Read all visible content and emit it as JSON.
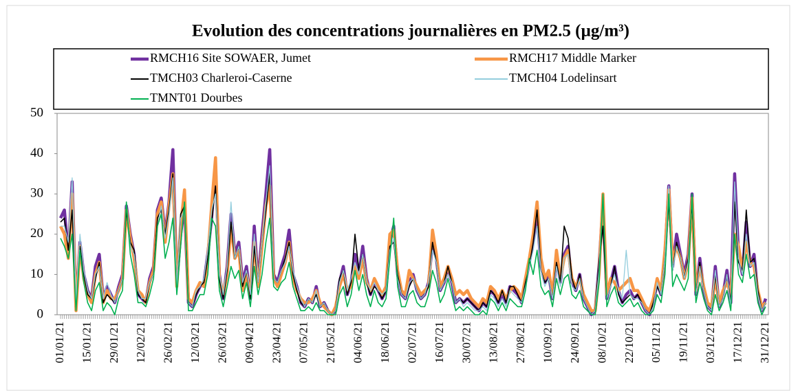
{
  "chart_data": {
    "type": "line",
    "title": "Evolution des concentrations journalières en PM2.5 (µg/m³)",
    "categories": [
      "01/01/21",
      null,
      null,
      null,
      null,
      null,
      null,
      "15/01/21",
      null,
      null,
      null,
      null,
      null,
      null,
      "29/01/21",
      null,
      null,
      null,
      null,
      null,
      null,
      "12/02/21",
      null,
      null,
      null,
      null,
      null,
      null,
      "26/02/21",
      null,
      null,
      null,
      null,
      null,
      null,
      "12/03/21",
      null,
      null,
      null,
      null,
      null,
      null,
      "26/03/21",
      null,
      null,
      null,
      null,
      null,
      null,
      "09/04/21",
      null,
      null,
      null,
      null,
      null,
      null,
      "23/04/21",
      null,
      null,
      null,
      null,
      null,
      null,
      "07/05/21",
      null,
      null,
      null,
      null,
      null,
      null,
      "21/05/21",
      null,
      null,
      null,
      null,
      null,
      null,
      "04/06/21",
      null,
      null,
      null,
      null,
      null,
      null,
      "18/06/21",
      null,
      null,
      null,
      null,
      null,
      null,
      "02/07/21",
      null,
      null,
      null,
      null,
      null,
      null,
      "16/07/21",
      null,
      null,
      null,
      null,
      null,
      null,
      "30/07/21",
      null,
      null,
      null,
      null,
      null,
      null,
      "13/08/21",
      null,
      null,
      null,
      null,
      null,
      null,
      "27/08/21",
      null,
      null,
      null,
      null,
      null,
      null,
      "10/09/21",
      null,
      null,
      null,
      null,
      null,
      null,
      "24/09/21",
      null,
      null,
      null,
      null,
      null,
      null,
      "08/10/21",
      null,
      null,
      null,
      null,
      null,
      null,
      "22/10/21",
      null,
      null,
      null,
      null,
      null,
      null,
      "05/11/21",
      null,
      null,
      null,
      null,
      null,
      null,
      "19/11/21",
      null,
      null,
      null,
      null,
      null,
      null,
      "03/12/21",
      null,
      null,
      null,
      null,
      null,
      null,
      "17/12/21",
      null,
      null,
      null,
      null,
      null,
      null,
      "31/12/21"
    ],
    "series": [
      {
        "name": "RMCH16 Site SOWAER, Jumet",
        "color": "#7030a0",
        "values": [
          24,
          26,
          15,
          33,
          2,
          18,
          10,
          6,
          4,
          12,
          15,
          4,
          7,
          5,
          3,
          7,
          10,
          27,
          20,
          15,
          5,
          4,
          3,
          9,
          12,
          26,
          29,
          20,
          28,
          41,
          8,
          20,
          27,
          3,
          2,
          5,
          7,
          8,
          15,
          24,
          37,
          10,
          4,
          12,
          25,
          15,
          18,
          8,
          12,
          4,
          22,
          8,
          20,
          30,
          41,
          10,
          8,
          12,
          15,
          21,
          10,
          7,
          3,
          2,
          4,
          3,
          7,
          2,
          3,
          1,
          0,
          1,
          8,
          12,
          5,
          8,
          15,
          10,
          17,
          9,
          5,
          8,
          6,
          4,
          6,
          18,
          22,
          10,
          5,
          4,
          8,
          10,
          6,
          4,
          5,
          8,
          18,
          14,
          6,
          8,
          11,
          8,
          3,
          4,
          3,
          4,
          3,
          2,
          1,
          3,
          2,
          6,
          5,
          3,
          5,
          3,
          7,
          6,
          5,
          3,
          8,
          13,
          18,
          25,
          12,
          8,
          10,
          4,
          14,
          8,
          15,
          17,
          8,
          6,
          10,
          4,
          2,
          0,
          1,
          12,
          28,
          4,
          8,
          12,
          6,
          3,
          5,
          6,
          4,
          5,
          3,
          1,
          0,
          3,
          8,
          5,
          15,
          32,
          12,
          20,
          15,
          10,
          15,
          30,
          5,
          14,
          6,
          2,
          1,
          12,
          2,
          5,
          11,
          3,
          35,
          15,
          10,
          23,
          12,
          15,
          5,
          1,
          4
        ]
      },
      {
        "name": "RMCH17 Middle Marker",
        "color": "#f79646",
        "values": [
          22,
          20,
          14,
          30,
          1,
          17,
          9,
          5,
          3,
          10,
          13,
          3,
          6,
          4,
          4,
          6,
          9,
          26,
          19,
          14,
          6,
          5,
          3,
          8,
          11,
          25,
          28,
          18,
          27,
          35,
          7,
          22,
          31,
          4,
          3,
          6,
          8,
          7,
          14,
          27,
          39,
          9,
          5,
          10,
          22,
          14,
          16,
          6,
          10,
          5,
          18,
          7,
          17,
          27,
          32,
          9,
          7,
          10,
          13,
          18,
          9,
          6,
          4,
          3,
          3,
          4,
          6,
          3,
          2,
          1,
          0,
          2,
          7,
          10,
          6,
          7,
          12,
          9,
          14,
          8,
          6,
          9,
          7,
          5,
          7,
          20,
          21,
          11,
          6,
          5,
          11,
          9,
          7,
          5,
          6,
          7,
          21,
          15,
          7,
          9,
          12,
          9,
          5,
          6,
          5,
          6,
          4,
          3,
          2,
          4,
          3,
          7,
          6,
          4,
          6,
          4,
          6,
          7,
          6,
          4,
          9,
          14,
          20,
          28,
          14,
          9,
          11,
          5,
          16,
          9,
          14,
          16,
          9,
          7,
          9,
          5,
          3,
          1,
          1,
          10,
          30,
          5,
          9,
          8,
          6,
          7,
          8,
          9,
          6,
          6,
          4,
          2,
          1,
          4,
          9,
          6,
          16,
          31,
          13,
          17,
          14,
          9,
          13,
          29,
          6,
          12,
          7,
          3,
          2,
          9,
          3,
          6,
          8,
          5,
          20,
          17,
          11,
          18,
          13,
          12,
          6,
          2,
          3
        ]
      },
      {
        "name": "TMCH03 Charleroi-Caserne",
        "color": "#000000",
        "values": [
          23,
          24,
          16,
          26,
          2,
          17,
          10,
          5,
          4,
          9,
          13,
          3,
          5,
          4,
          3,
          6,
          9,
          26,
          18,
          16,
          5,
          4,
          3,
          8,
          10,
          24,
          26,
          20,
          26,
          35,
          6,
          25,
          27,
          3,
          2,
          5,
          7,
          8,
          14,
          23,
          32,
          9,
          4,
          11,
          23,
          14,
          17,
          7,
          11,
          4,
          17,
          8,
          18,
          26,
          35,
          9,
          8,
          11,
          14,
          18,
          10,
          6,
          3,
          2,
          4,
          3,
          5,
          2,
          3,
          1,
          0,
          1,
          9,
          11,
          5,
          8,
          20,
          11,
          15,
          8,
          5,
          7,
          6,
          4,
          6,
          17,
          18,
          10,
          5,
          4,
          7,
          9,
          6,
          4,
          5,
          7,
          18,
          13,
          6,
          8,
          12,
          8,
          3,
          4,
          3,
          4,
          3,
          2,
          1,
          3,
          2,
          6,
          5,
          3,
          6,
          3,
          7,
          7,
          5,
          3,
          8,
          12,
          18,
          26,
          11,
          8,
          9,
          4,
          13,
          8,
          22,
          19,
          9,
          6,
          10,
          4,
          2,
          0,
          1,
          13,
          22,
          4,
          7,
          12,
          5,
          3,
          4,
          5,
          4,
          5,
          3,
          1,
          0,
          3,
          7,
          5,
          14,
          28,
          11,
          18,
          14,
          9,
          14,
          28,
          5,
          13,
          6,
          2,
          1,
          10,
          2,
          4,
          10,
          3,
          28,
          13,
          11,
          26,
          13,
          14,
          6,
          1,
          3
        ]
      },
      {
        "name": "TMCH04 Lodelinsart",
        "color": "#93cddd",
        "values": [
          22,
          22,
          18,
          34,
          3,
          20,
          11,
          6,
          4,
          10,
          12,
          4,
          8,
          5,
          3,
          6,
          9,
          28,
          17,
          15,
          6,
          4,
          4,
          8,
          10,
          22,
          27,
          19,
          25,
          34,
          7,
          24,
          26,
          3,
          2,
          6,
          7,
          9,
          16,
          26,
          30,
          10,
          5,
          12,
          28,
          14,
          17,
          8,
          11,
          5,
          20,
          8,
          18,
          28,
          37,
          9,
          8,
          11,
          13,
          17,
          11,
          7,
          4,
          2,
          4,
          3,
          6,
          2,
          3,
          1,
          0,
          1,
          8,
          11,
          6,
          9,
          13,
          10,
          15,
          8,
          6,
          8,
          6,
          5,
          6,
          16,
          19,
          9,
          5,
          4,
          8,
          9,
          6,
          4,
          5,
          8,
          16,
          13,
          6,
          8,
          10,
          8,
          3,
          4,
          2,
          3,
          2,
          1,
          1,
          2,
          1,
          5,
          4,
          2,
          4,
          2,
          6,
          5,
          4,
          3,
          7,
          12,
          16,
          22,
          11,
          7,
          9,
          4,
          12,
          7,
          14,
          15,
          7,
          6,
          9,
          4,
          2,
          0,
          1,
          11,
          30,
          4,
          7,
          10,
          6,
          4,
          16,
          5,
          4,
          4,
          3,
          1,
          0,
          2,
          8,
          5,
          14,
          32,
          11,
          17,
          14,
          9,
          13,
          29,
          5,
          12,
          6,
          2,
          1,
          11,
          2,
          4,
          10,
          2,
          33,
          14,
          10,
          20,
          12,
          13,
          5,
          1,
          3
        ]
      },
      {
        "name": "TMNT01 Dourbes",
        "color": "#00b050",
        "values": [
          19,
          17,
          14,
          20,
          1,
          16,
          8,
          3,
          1,
          6,
          8,
          1,
          3,
          2,
          0,
          4,
          6,
          28,
          15,
          10,
          3,
          3,
          2,
          5,
          9,
          22,
          25,
          14,
          18,
          24,
          5,
          17,
          28,
          1,
          1,
          3,
          5,
          5,
          10,
          24,
          22,
          6,
          2,
          7,
          12,
          9,
          11,
          4,
          8,
          2,
          12,
          5,
          10,
          18,
          24,
          7,
          6,
          8,
          9,
          13,
          7,
          4,
          1,
          1,
          2,
          1,
          3,
          1,
          1,
          0,
          0,
          0,
          5,
          7,
          2,
          5,
          11,
          6,
          10,
          5,
          2,
          6,
          3,
          2,
          4,
          14,
          24,
          7,
          2,
          2,
          5,
          6,
          3,
          2,
          2,
          5,
          11,
          8,
          3,
          5,
          9,
          5,
          1,
          2,
          1,
          2,
          1,
          0,
          0,
          1,
          0,
          4,
          3,
          1,
          3,
          1,
          4,
          3,
          2,
          2,
          6,
          14,
          10,
          16,
          7,
          5,
          6,
          2,
          9,
          5,
          9,
          10,
          5,
          4,
          6,
          2,
          1,
          0,
          0,
          8,
          30,
          2,
          5,
          7,
          3,
          2,
          3,
          4,
          2,
          3,
          1,
          0,
          0,
          1,
          5,
          3,
          10,
          30,
          7,
          10,
          8,
          6,
          9,
          30,
          3,
          8,
          4,
          1,
          0,
          5,
          1,
          3,
          6,
          1,
          20,
          10,
          8,
          15,
          9,
          10,
          3,
          0,
          2
        ]
      }
    ],
    "ylim": [
      0,
      50
    ],
    "yticks": [
      0,
      10,
      20,
      30,
      40,
      50
    ],
    "grid": false
  }
}
